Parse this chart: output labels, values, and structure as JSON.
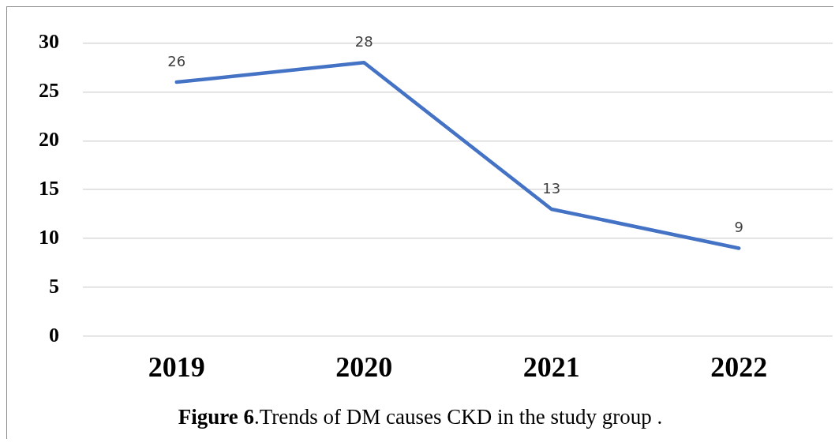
{
  "chart_data": {
    "type": "line",
    "categories": [
      "2019",
      "2020",
      "2021",
      "2022"
    ],
    "series": [
      {
        "color": "#4472c4",
        "values": [
          26,
          28,
          13,
          9
        ]
      }
    ],
    "ylim": [
      0,
      30
    ],
    "yticks": [
      0,
      5,
      10,
      15,
      20,
      25,
      30
    ],
    "grid": "y",
    "marker": "none",
    "line_style": "solid",
    "data_labels": true,
    "annotations": [
      "Figure 6",
      ".Trends of DM causes CKD in the study group ."
    ]
  }
}
